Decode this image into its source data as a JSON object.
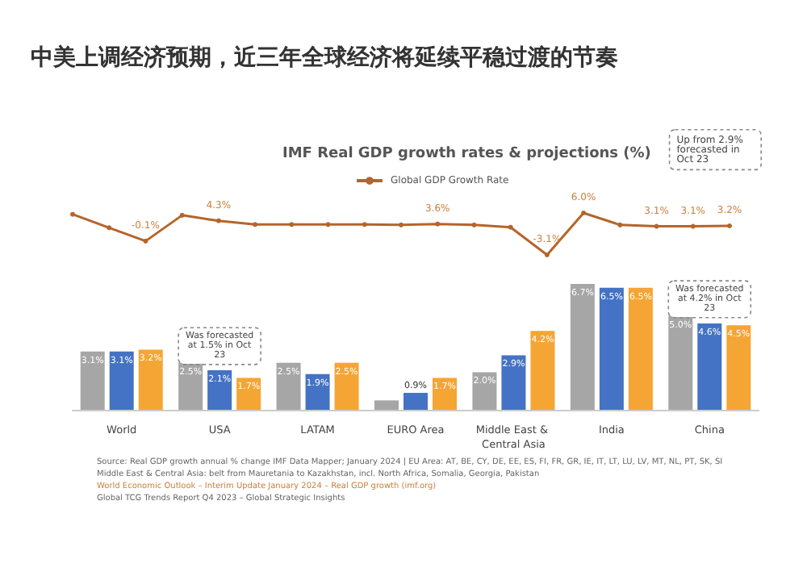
{
  "chart_data": [
    {
      "type": "line",
      "title": "中美上调经济预期，近三年全球经济将延续平稳过渡的节奏",
      "subtitle": "IMF Real GDP growth rates & projections (%)",
      "categories": [
        null,
        null,
        null,
        null,
        null,
        null,
        null,
        null,
        null,
        null,
        null,
        null,
        null,
        null,
        null,
        null,
        null,
        null,
        null
      ],
      "series": [
        {
          "name": "Global GDP Growth Rate",
          "color": "#b5652a",
          "values": [
            5.7,
            2.8,
            -0.1,
            5.5,
            4.3,
            3.5,
            3.5,
            3.5,
            3.5,
            3.4,
            3.6,
            3.4,
            2.9,
            -3.1,
            6.0,
            3.4,
            3.1,
            3.1,
            3.2
          ],
          "value_labels": [
            null,
            null,
            "-0.1%",
            null,
            "4.3%",
            null,
            null,
            null,
            null,
            null,
            "3.6%",
            null,
            null,
            "-3.1%",
            "6.0%",
            null,
            "3.1%",
            "3.1%",
            "3.2%"
          ]
        }
      ],
      "marker": "circle",
      "legend": "top",
      "grid": false,
      "annotations": [
        "Up from 2.9% forecasted in Oct 23"
      ]
    },
    {
      "type": "bar",
      "categories": [
        "World",
        "USA",
        "LATAM",
        "EURO Area",
        "Middle East & Central Asia",
        "India",
        "China"
      ],
      "series": [
        {
          "color": "#a6a6a6",
          "values": [
            3.1,
            2.5,
            2.5,
            0.5,
            2.0,
            6.7,
            5.0
          ],
          "value_labels": [
            "3.1%",
            "2.5%",
            "2.5%",
            null,
            "2.0%",
            "6.7%",
            "5.0%"
          ]
        },
        {
          "color": "#4472c4",
          "values": [
            3.1,
            2.1,
            1.9,
            0.9,
            2.9,
            6.5,
            4.6
          ],
          "value_labels": [
            "3.1%",
            "2.1%",
            "1.9%",
            "0.9%",
            "2.9%",
            "6.5%",
            "4.6%"
          ]
        },
        {
          "color": "#f5a533",
          "values": [
            3.2,
            1.7,
            2.5,
            1.7,
            4.2,
            6.5,
            4.5
          ],
          "value_labels": [
            "3.2%",
            "1.7%",
            "2.5%",
            "1.7%",
            "4.2%",
            "6.5%",
            "4.5%"
          ]
        }
      ],
      "legend": false,
      "grid": false,
      "annotations": [
        {
          "text": "Was forecasted at 1.5% in Oct 23",
          "x": "USA",
          "y": 2.1
        },
        {
          "text": "Was forecasted at 4.2% in Oct 23",
          "x": "China",
          "y": 4.6
        },
        "Source: Real GDP growth annual % change IMF Data Mapper; January 2024 | EU Area: AT, BE, CY, DE, EE, ES, FI, FR, GR, IE, IT, LT, LU, LV, MT, NL, PT, SK, SI",
        "Middle East & Central Asia: belt from Mauretania to Kazakhstan, incl. North Africa, Somalia, Georgia, Pakistan",
        "World Economic Outlook – Interim Update January 2024 – Real GDP growth (imf.org)",
        "Global TCG Trends Report Q4 2023 – Global Strategic Insights"
      ]
    }
  ]
}
